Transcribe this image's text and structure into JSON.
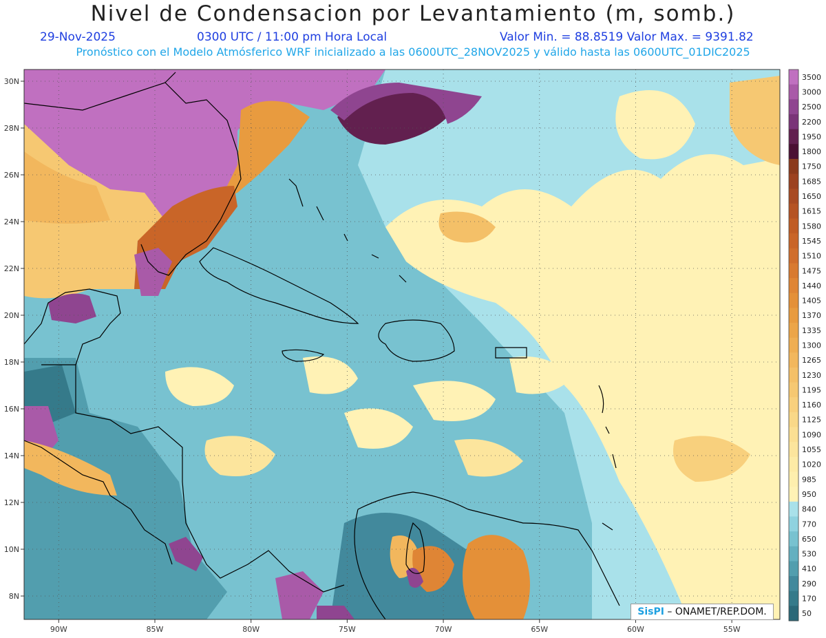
{
  "title": "Nivel de Condensacion por Levantamiento (m, somb.)",
  "date_label": "29-Nov-2025",
  "time_label": "0300 UTC / 11:00 pm Hora Local",
  "minmax_label": "Valor Min. = 88.8519   Valor Max. = 9391.82",
  "model_label": "Pronóstico con el Modelo Atmósferico WRF inicializado a las 0600UTC_28NOV2025 y válido hasta las  0600UTC_01DIC2025",
  "credit": {
    "brand": "SisPI",
    "text": " – ONAMET/REP.DOM."
  },
  "map": {
    "lat_ticks": [
      "30N",
      "28N",
      "26N",
      "24N",
      "22N",
      "20N",
      "18N",
      "16N",
      "14N",
      "12N",
      "10N",
      "8N"
    ],
    "lon_ticks": [
      "90W",
      "85W",
      "80W",
      "75W",
      "70W",
      "65W",
      "60W",
      "55W"
    ],
    "lat_range": [
      7,
      30.5
    ],
    "lon_range": [
      -91.8,
      -52.5
    ]
  },
  "colorbar": {
    "labels": [
      "3500",
      "3000",
      "2500",
      "2200",
      "1950",
      "1800",
      "1750",
      "1685",
      "1650",
      "1615",
      "1580",
      "1545",
      "1510",
      "1475",
      "1440",
      "1405",
      "1370",
      "1335",
      "1300",
      "1265",
      "1230",
      "1195",
      "1160",
      "1125",
      "1090",
      "1055",
      "1020",
      "985",
      "950",
      "840",
      "770",
      "650",
      "530",
      "410",
      "290",
      "170",
      "50"
    ],
    "colors": [
      "#c070c0",
      "#a95aa8",
      "#8f4590",
      "#7a3478",
      "#62204f",
      "#4b1033",
      "#8b3a1c",
      "#9c4220",
      "#a84a22",
      "#b55323",
      "#c05c24",
      "#c96528",
      "#d06e2c",
      "#d87a30",
      "#df8535",
      "#e49038",
      "#e89b3f",
      "#eca548",
      "#efae52",
      "#f2b75d",
      "#f4c068",
      "#f6c872",
      "#f8d07d",
      "#f9d888",
      "#fbdf93",
      "#fce59d",
      "#fdeba6",
      "#feefae",
      "#fff2b5",
      "#a9e1ea",
      "#8fd2df",
      "#78c2d0",
      "#64b0c0",
      "#529eae",
      "#42899c",
      "#357a8a",
      "#2a6878"
    ]
  }
}
